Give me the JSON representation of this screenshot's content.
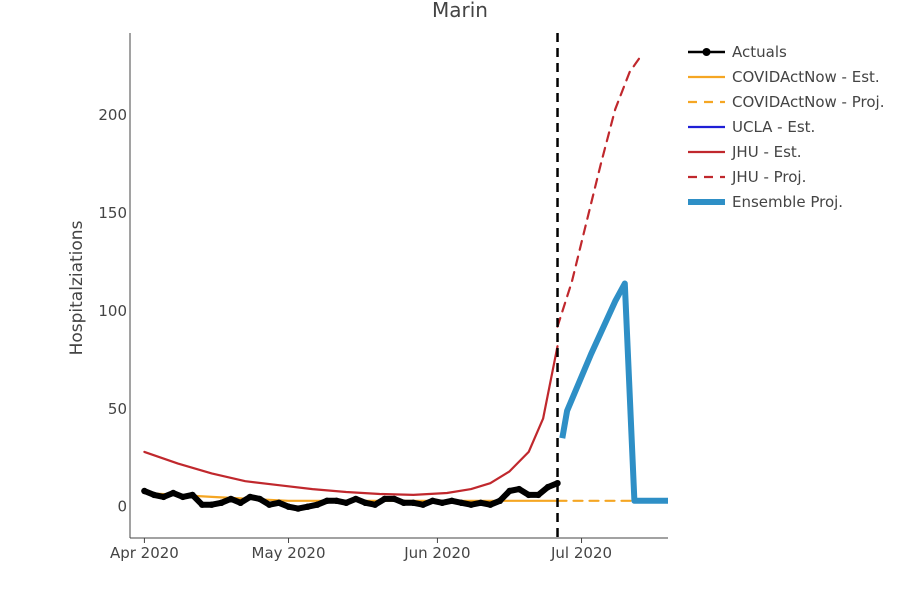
{
  "chart_data": {
    "type": "line",
    "title": "Marin",
    "ylabel": "Hospitalziations",
    "xlabel": "",
    "x_ticks": [
      "Apr 2020",
      "May 2020",
      "Jun 2020",
      "Jul 2020"
    ],
    "y_ticks": [
      0,
      50,
      100,
      150,
      200
    ],
    "xlim": [
      "2020-03-29",
      "2020-07-19"
    ],
    "ylim": [
      -16,
      242
    ],
    "grid": false,
    "legend_position": "right",
    "cutoff_date": "2020-06-26",
    "series": [
      {
        "name": "Actuals",
        "color": "#000000",
        "style": "solid-markers",
        "x": [
          "2020-04-01",
          "2020-04-03",
          "2020-04-05",
          "2020-04-07",
          "2020-04-09",
          "2020-04-11",
          "2020-04-13",
          "2020-04-15",
          "2020-04-17",
          "2020-04-19",
          "2020-04-21",
          "2020-04-23",
          "2020-04-25",
          "2020-04-27",
          "2020-04-29",
          "2020-05-01",
          "2020-05-03",
          "2020-05-05",
          "2020-05-07",
          "2020-05-09",
          "2020-05-11",
          "2020-05-13",
          "2020-05-15",
          "2020-05-17",
          "2020-05-19",
          "2020-05-21",
          "2020-05-23",
          "2020-05-25",
          "2020-05-27",
          "2020-05-29",
          "2020-05-31",
          "2020-06-02",
          "2020-06-04",
          "2020-06-06",
          "2020-06-08",
          "2020-06-10",
          "2020-06-12",
          "2020-06-14",
          "2020-06-16",
          "2020-06-18",
          "2020-06-20",
          "2020-06-22",
          "2020-06-24",
          "2020-06-26"
        ],
        "y": [
          8,
          6,
          5,
          7,
          5,
          6,
          1,
          1,
          2,
          4,
          2,
          5,
          4,
          1,
          2,
          0,
          -1,
          0,
          1,
          3,
          3,
          2,
          4,
          2,
          1,
          4,
          4,
          2,
          2,
          1,
          3,
          2,
          3,
          2,
          1,
          2,
          1,
          3,
          8,
          9,
          6,
          6,
          10,
          12
        ]
      },
      {
        "name": "COVIDActNow - Est.",
        "color": "#f5a623",
        "style": "solid",
        "x": [
          "2020-04-01",
          "2020-04-15",
          "2020-05-01",
          "2020-05-15",
          "2020-06-01",
          "2020-06-15",
          "2020-06-26"
        ],
        "y": [
          7,
          5,
          3,
          3,
          3,
          3,
          3
        ]
      },
      {
        "name": "COVIDActNow - Proj.",
        "color": "#f5a623",
        "style": "dash",
        "x": [
          "2020-06-26",
          "2020-07-19"
        ],
        "y": [
          3,
          3
        ]
      },
      {
        "name": "UCLA - Est.",
        "color": "#1f1fd6",
        "style": "solid",
        "x": [
          "2020-04-01",
          "2020-04-03",
          "2020-04-05",
          "2020-04-07",
          "2020-04-09",
          "2020-04-11",
          "2020-04-13",
          "2020-04-15",
          "2020-04-17",
          "2020-04-19",
          "2020-04-21",
          "2020-04-23",
          "2020-04-25",
          "2020-04-27",
          "2020-04-29",
          "2020-05-01",
          "2020-05-03",
          "2020-05-05",
          "2020-05-07",
          "2020-05-09",
          "2020-05-11",
          "2020-05-13",
          "2020-05-15",
          "2020-05-17",
          "2020-05-19",
          "2020-05-21",
          "2020-05-23",
          "2020-05-25",
          "2020-05-27",
          "2020-05-29",
          "2020-05-31",
          "2020-06-02",
          "2020-06-04",
          "2020-06-06",
          "2020-06-08",
          "2020-06-10",
          "2020-06-12",
          "2020-06-14",
          "2020-06-16",
          "2020-06-18",
          "2020-06-20",
          "2020-06-22",
          "2020-06-24",
          "2020-06-26"
        ],
        "y": [
          8,
          6,
          5,
          7,
          5,
          6,
          1,
          1,
          2,
          4,
          2,
          5,
          4,
          1,
          2,
          0,
          -1,
          0,
          1,
          3,
          3,
          2,
          4,
          2,
          1,
          4,
          4,
          2,
          2,
          1,
          3,
          2,
          3,
          2,
          1,
          2,
          1,
          3,
          8,
          9,
          6,
          6,
          10,
          12
        ]
      },
      {
        "name": "JHU - Est.",
        "color": "#c0282d",
        "style": "solid",
        "x": [
          "2020-04-01",
          "2020-04-08",
          "2020-04-15",
          "2020-04-22",
          "2020-04-29",
          "2020-05-06",
          "2020-05-13",
          "2020-05-20",
          "2020-05-27",
          "2020-06-03",
          "2020-06-08",
          "2020-06-12",
          "2020-06-16",
          "2020-06-20",
          "2020-06-23",
          "2020-06-26"
        ],
        "y": [
          28,
          22,
          17,
          13,
          11,
          9,
          7.5,
          6.5,
          6,
          7,
          9,
          12,
          18,
          28,
          45,
          82
        ]
      },
      {
        "name": "JHU - Proj.",
        "color": "#c0282d",
        "style": "dash",
        "x": [
          "2020-06-26",
          "2020-06-29",
          "2020-07-02",
          "2020-07-05",
          "2020-07-08",
          "2020-07-11",
          "2020-07-13"
        ],
        "y": [
          92,
          115,
          145,
          175,
          203,
          222,
          229
        ]
      },
      {
        "name": "Ensemble Proj.",
        "color": "#2e8fc6",
        "style": "thick",
        "x": [
          "2020-06-27",
          "2020-06-28",
          "2020-07-03",
          "2020-07-08",
          "2020-07-10",
          "2020-07-12",
          "2020-07-19"
        ],
        "y": [
          35,
          49,
          78,
          105,
          114,
          3,
          3
        ]
      }
    ]
  }
}
